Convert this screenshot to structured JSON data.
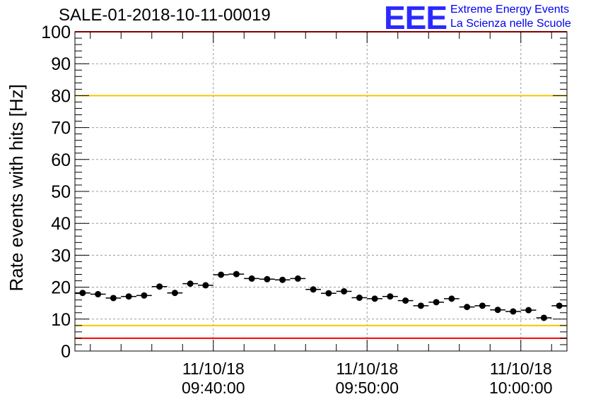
{
  "header": {
    "title": "SALE-01-2018-10-11-00019",
    "logo_mark": "EEE",
    "logo_line1": "Extreme Energy Events",
    "logo_line2": "La Scienza nelle Scuole"
  },
  "colors": {
    "red_line": "#ff0000",
    "yellow_line": "#f5c800",
    "logo_blue": "#2a2aff",
    "marker": "#000000",
    "grid": "#9a9a9a"
  },
  "chart_data": {
    "type": "scatter",
    "title": "SALE-01-2018-10-11-00019",
    "xlabel": "",
    "ylabel": "Rate events with hits [Hz]",
    "ylim": [
      0,
      100
    ],
    "xlim": [
      "2018-10-11 09:31:00",
      "2018-10-11 10:03:00"
    ],
    "yticks": [
      0,
      10,
      20,
      30,
      40,
      50,
      60,
      70,
      80,
      90,
      100
    ],
    "xticks": [
      {
        "x": "2018-10-11 09:40:00",
        "date": "11/10/18",
        "time": "09:40:00"
      },
      {
        "x": "2018-10-11 09:50:00",
        "date": "11/10/18",
        "time": "09:50:00"
      },
      {
        "x": "2018-10-11 10:00:00",
        "date": "11/10/18",
        "time": "10:00:00"
      }
    ],
    "grid": true,
    "reference_lines": [
      {
        "y": 4,
        "color": "red"
      },
      {
        "y": 8,
        "color": "yellow"
      },
      {
        "y": 80,
        "color": "yellow"
      },
      {
        "y": 100,
        "color": "red"
      }
    ],
    "bin_width_minutes": 1,
    "x": [
      "2018-10-11 09:31:00",
      "2018-10-11 09:32:00",
      "2018-10-11 09:33:00",
      "2018-10-11 09:34:00",
      "2018-10-11 09:35:00",
      "2018-10-11 09:36:00",
      "2018-10-11 09:37:00",
      "2018-10-11 09:38:00",
      "2018-10-11 09:39:00",
      "2018-10-11 09:40:00",
      "2018-10-11 09:41:00",
      "2018-10-11 09:42:00",
      "2018-10-11 09:43:00",
      "2018-10-11 09:44:00",
      "2018-10-11 09:45:00",
      "2018-10-11 09:46:00",
      "2018-10-11 09:47:00",
      "2018-10-11 09:48:00",
      "2018-10-11 09:49:00",
      "2018-10-11 09:50:00",
      "2018-10-11 09:51:00",
      "2018-10-11 09:52:00",
      "2018-10-11 09:53:00",
      "2018-10-11 09:54:00",
      "2018-10-11 09:55:00",
      "2018-10-11 09:56:00",
      "2018-10-11 09:57:00",
      "2018-10-11 09:58:00",
      "2018-10-11 09:59:00",
      "2018-10-11 10:00:00",
      "2018-10-11 10:01:00",
      "2018-10-11 10:02:00"
    ],
    "values": [
      18.2,
      17.8,
      16.6,
      17.1,
      17.4,
      20.2,
      18.2,
      21.1,
      20.6,
      23.9,
      24.1,
      22.7,
      22.5,
      22.3,
      22.7,
      19.3,
      18.1,
      18.7,
      16.7,
      16.4,
      17.1,
      15.8,
      14.2,
      15.3,
      16.4,
      13.8,
      14.2,
      12.9,
      12.4,
      12.8,
      10.4,
      14.2
    ]
  }
}
